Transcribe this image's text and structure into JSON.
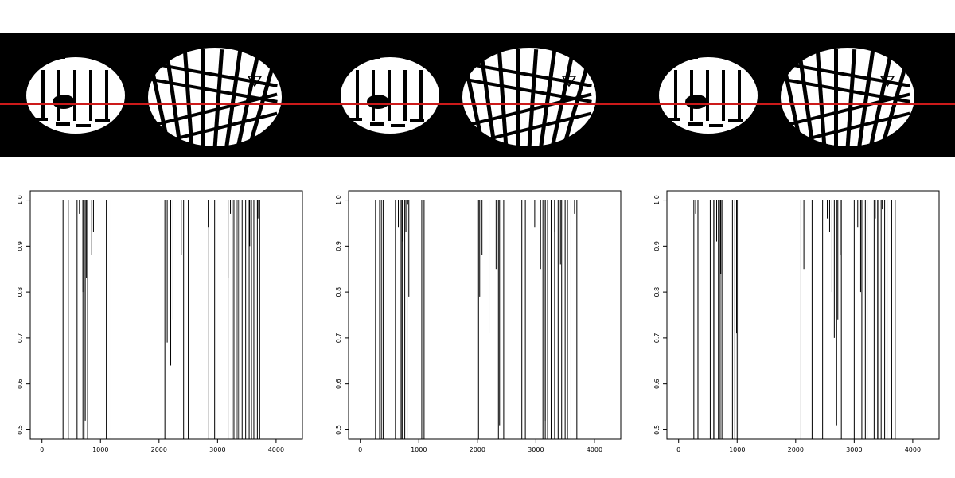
{
  "figure": {
    "scan_line_color": "#cc1a1a",
    "background_band_color": "#000000",
    "print_color": "#ffffff",
    "print_count": 3
  },
  "chart_data": [
    {
      "type": "line",
      "title": "",
      "xlabel": "",
      "ylabel": "",
      "xlim": [
        -200,
        4450
      ],
      "ylim": [
        0.48,
        1.02
      ],
      "x_ticks": [
        0,
        1000,
        2000,
        3000,
        4000
      ],
      "x_tick_labels": [
        "0",
        "1000",
        "2000",
        "3000",
        "4000"
      ],
      "y_ticks": [
        0.5,
        0.6,
        0.7,
        0.8,
        0.9,
        1.0
      ],
      "y_tick_labels": [
        "0.5",
        "0.6",
        "0.7",
        "0.8",
        "0.9",
        "1.0"
      ],
      "plateaus": [
        [
          360,
          450
        ],
        [
          600,
          700
        ],
        [
          720,
          780
        ],
        [
          1100,
          1180
        ],
        [
          2100,
          2420
        ],
        [
          2500,
          2850
        ],
        [
          2950,
          3180
        ],
        [
          3250,
          3280
        ],
        [
          3320,
          3350
        ],
        [
          3380,
          3420
        ],
        [
          3480,
          3540
        ],
        [
          3580,
          3620
        ],
        [
          3680,
          3720
        ]
      ],
      "spikes": [
        [
          640,
          0.97
        ],
        [
          700,
          0.8
        ],
        [
          740,
          0.52
        ],
        [
          760,
          0.83
        ],
        [
          850,
          0.88
        ],
        [
          880,
          0.93
        ],
        [
          2140,
          0.69
        ],
        [
          2200,
          0.64
        ],
        [
          2240,
          0.74
        ],
        [
          2380,
          0.88
        ],
        [
          2840,
          0.94
        ],
        [
          3180,
          0.83
        ],
        [
          3220,
          0.97
        ],
        [
          3550,
          0.9
        ],
        [
          3690,
          0.96
        ]
      ]
    },
    {
      "type": "line",
      "title": "",
      "xlabel": "",
      "ylabel": "",
      "xlim": [
        -200,
        4450
      ],
      "ylim": [
        0.48,
        1.02
      ],
      "x_ticks": [
        0,
        1000,
        2000,
        3000,
        4000
      ],
      "x_tick_labels": [
        "0",
        "1000",
        "2000",
        "3000",
        "4000"
      ],
      "y_ticks": [
        0.5,
        0.6,
        0.7,
        0.8,
        0.9,
        1.0
      ],
      "y_tick_labels": [
        "0.5",
        "0.6",
        "0.7",
        "0.8",
        "0.9",
        "1.0"
      ],
      "plateaus": [
        [
          260,
          330
        ],
        [
          360,
          390
        ],
        [
          600,
          680
        ],
        [
          700,
          720
        ],
        [
          760,
          800
        ],
        [
          1050,
          1090
        ],
        [
          2020,
          2360
        ],
        [
          2450,
          2760
        ],
        [
          2820,
          3120
        ],
        [
          3160,
          3200
        ],
        [
          3260,
          3320
        ],
        [
          3380,
          3440
        ],
        [
          3500,
          3540
        ],
        [
          3600,
          3700
        ]
      ],
      "spikes": [
        [
          650,
          0.94
        ],
        [
          720,
          0.91
        ],
        [
          780,
          0.93
        ],
        [
          810,
          0.99
        ],
        [
          830,
          0.79
        ],
        [
          2040,
          0.79
        ],
        [
          2080,
          0.88
        ],
        [
          2200,
          0.71
        ],
        [
          2320,
          0.85
        ],
        [
          2380,
          0.51
        ],
        [
          2980,
          0.94
        ],
        [
          3080,
          0.85
        ],
        [
          3160,
          0.52
        ],
        [
          3320,
          0.93
        ],
        [
          3420,
          0.86
        ],
        [
          3660,
          0.97
        ]
      ]
    },
    {
      "type": "line",
      "title": "",
      "xlabel": "",
      "ylabel": "",
      "xlim": [
        -200,
        4450
      ],
      "ylim": [
        0.48,
        1.02
      ],
      "x_ticks": [
        0,
        1000,
        2000,
        3000,
        4000
      ],
      "x_tick_labels": [
        "0",
        "1000",
        "2000",
        "3000",
        "4000"
      ],
      "y_ticks": [
        0.5,
        0.6,
        0.7,
        0.8,
        0.9,
        1.0
      ],
      "y_tick_labels": [
        "0.5",
        "0.6",
        "0.7",
        "0.8",
        "0.9",
        "1.0"
      ],
      "plateaus": [
        [
          260,
          330
        ],
        [
          540,
          600
        ],
        [
          620,
          680
        ],
        [
          710,
          740
        ],
        [
          920,
          960
        ],
        [
          1000,
          1030
        ],
        [
          2090,
          2280
        ],
        [
          2460,
          2780
        ],
        [
          3000,
          3130
        ],
        [
          3190,
          3220
        ],
        [
          3340,
          3400
        ],
        [
          3420,
          3460
        ],
        [
          3520,
          3560
        ],
        [
          3640,
          3700
        ]
      ],
      "spikes": [
        [
          290,
          0.97
        ],
        [
          650,
          0.91
        ],
        [
          690,
          0.95
        ],
        [
          720,
          0.84
        ],
        [
          990,
          0.71
        ],
        [
          2140,
          0.85
        ],
        [
          2540,
          0.96
        ],
        [
          2580,
          0.93
        ],
        [
          2620,
          0.8
        ],
        [
          2660,
          0.7
        ],
        [
          2700,
          0.51
        ],
        [
          2720,
          0.74
        ],
        [
          2760,
          0.88
        ],
        [
          3060,
          0.94
        ],
        [
          3110,
          0.8
        ],
        [
          3360,
          0.96
        ],
        [
          3480,
          0.98
        ]
      ]
    }
  ]
}
